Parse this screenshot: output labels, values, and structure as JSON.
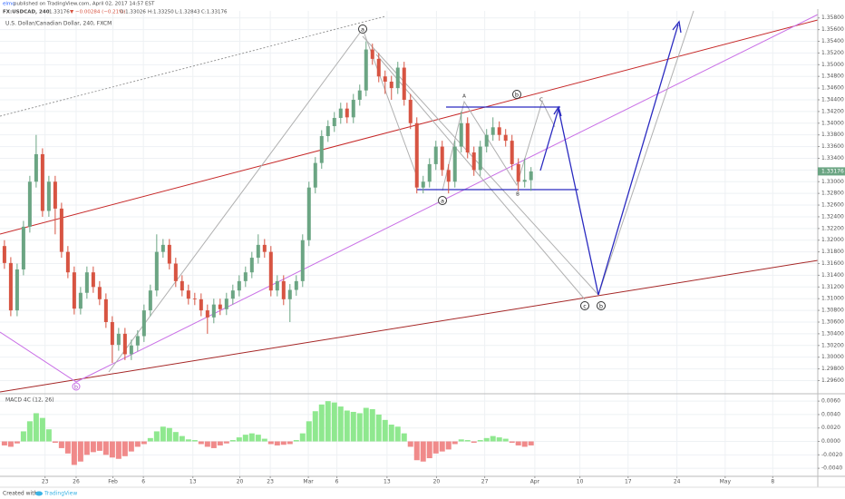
{
  "header": {
    "author": "elmo",
    "published": " published on TradingView.com, April 02, 2017 14:57 EST",
    "symbol": "FX:USDCAD, 240",
    "last": "1.33176",
    "change": "▼ −0.00284 (−0.21%)",
    "open": "O:1.33026",
    "high": "H:1.33250",
    "low": "L:1.32843",
    "close": "C:1.33176"
  },
  "chart_data": [
    {
      "type": "candlestick",
      "title": "U.S. Dollar/Canadian Dollar, 240, FXCM",
      "x": [
        0,
        1,
        2,
        3,
        4,
        5,
        6,
        7,
        8,
        9,
        10,
        11,
        12,
        13,
        14,
        15,
        16,
        17,
        18,
        19,
        20,
        21,
        22,
        23,
        24,
        25,
        26,
        27,
        28,
        29,
        30,
        31,
        32,
        33,
        34,
        35,
        36,
        37,
        38,
        39,
        40,
        41,
        42,
        43,
        44,
        45,
        46,
        47,
        48,
        49,
        50,
        51,
        52,
        53,
        54,
        55,
        56,
        57,
        58,
        59,
        60,
        61,
        62,
        63,
        64,
        65,
        66,
        67,
        68,
        69,
        70,
        71,
        72,
        73,
        74,
        75,
        76,
        77,
        78,
        79,
        80,
        81,
        82,
        83
      ],
      "open": [
        1.319,
        1.3161,
        1.308,
        1.315,
        1.3223,
        1.33,
        1.3347,
        1.325,
        1.33,
        1.3254,
        1.318,
        1.3145,
        1.3083,
        1.311,
        1.3145,
        1.312,
        1.3099,
        1.306,
        1.3021,
        1.304,
        1.3005,
        1.302,
        1.3036,
        1.308,
        1.3114,
        1.318,
        1.3192,
        1.316,
        1.313,
        1.3114,
        1.31,
        1.3099,
        1.308,
        1.3068,
        1.309,
        1.3082,
        1.31,
        1.3114,
        1.313,
        1.3145,
        1.317,
        1.3192,
        1.318,
        1.3114,
        1.313,
        1.3099,
        1.3115,
        1.313,
        1.32,
        1.329,
        1.3332,
        1.3378,
        1.3395,
        1.3409,
        1.3425,
        1.341,
        1.344,
        1.3456,
        1.3526,
        1.351,
        1.348,
        1.3471,
        1.346,
        1.3495,
        1.344,
        1.34,
        1.329,
        1.33,
        1.333,
        1.336,
        1.332,
        1.33,
        1.336,
        1.34,
        1.335,
        1.332,
        1.336,
        1.338,
        1.3393,
        1.338,
        1.337,
        1.333,
        1.33,
        1.33026
      ],
      "high": [
        1.32,
        1.3171,
        1.316,
        1.3233,
        1.331,
        1.338,
        1.3357,
        1.331,
        1.331,
        1.3264,
        1.319,
        1.3155,
        1.312,
        1.3155,
        1.3155,
        1.313,
        1.3109,
        1.307,
        1.305,
        1.305,
        1.303,
        1.3046,
        1.309,
        1.3124,
        1.321,
        1.3202,
        1.3202,
        1.317,
        1.314,
        1.3124,
        1.311,
        1.3109,
        1.309,
        1.31,
        1.31,
        1.311,
        1.3124,
        1.314,
        1.3155,
        1.318,
        1.321,
        1.3202,
        1.319,
        1.314,
        1.314,
        1.3125,
        1.314,
        1.321,
        1.33,
        1.3342,
        1.3388,
        1.3405,
        1.3419,
        1.3435,
        1.3435,
        1.345,
        1.3466,
        1.354,
        1.3536,
        1.352,
        1.349,
        1.3481,
        1.3505,
        1.3505,
        1.345,
        1.341,
        1.331,
        1.334,
        1.337,
        1.337,
        1.333,
        1.337,
        1.342,
        1.341,
        1.336,
        1.337,
        1.339,
        1.341,
        1.3403,
        1.339,
        1.338,
        1.334,
        1.334,
        1.3325
      ],
      "low": [
        1.3151,
        1.307,
        1.307,
        1.314,
        1.3213,
        1.329,
        1.324,
        1.324,
        1.321,
        1.317,
        1.3135,
        1.3073,
        1.3073,
        1.31,
        1.311,
        1.3089,
        1.305,
        1.299,
        1.3011,
        1.2995,
        1.2995,
        1.301,
        1.3026,
        1.307,
        1.3104,
        1.317,
        1.315,
        1.312,
        1.3104,
        1.309,
        1.3089,
        1.307,
        1.304,
        1.3058,
        1.3072,
        1.3072,
        1.309,
        1.3104,
        1.312,
        1.3135,
        1.316,
        1.317,
        1.3104,
        1.3104,
        1.3089,
        1.306,
        1.3105,
        1.312,
        1.319,
        1.328,
        1.3322,
        1.3368,
        1.3385,
        1.3399,
        1.34,
        1.34,
        1.343,
        1.3446,
        1.35,
        1.347,
        1.345,
        1.344,
        1.345,
        1.343,
        1.339,
        1.328,
        1.328,
        1.329,
        1.332,
        1.331,
        1.328,
        1.329,
        1.335,
        1.334,
        1.331,
        1.331,
        1.335,
        1.337,
        1.337,
        1.336,
        1.332,
        1.3284,
        1.329,
        1.32843
      ],
      "close": [
        1.3161,
        1.308,
        1.315,
        1.3223,
        1.33,
        1.3347,
        1.325,
        1.33,
        1.3254,
        1.318,
        1.3145,
        1.3083,
        1.311,
        1.3145,
        1.312,
        1.3099,
        1.306,
        1.3021,
        1.304,
        1.3005,
        1.302,
        1.3036,
        1.308,
        1.3114,
        1.318,
        1.3192,
        1.316,
        1.313,
        1.3114,
        1.31,
        1.3099,
        1.308,
        1.3068,
        1.309,
        1.3082,
        1.31,
        1.3114,
        1.313,
        1.3145,
        1.317,
        1.3192,
        1.318,
        1.3114,
        1.313,
        1.3099,
        1.3115,
        1.313,
        1.32,
        1.329,
        1.3332,
        1.3378,
        1.3395,
        1.3409,
        1.3425,
        1.341,
        1.344,
        1.3456,
        1.3526,
        1.351,
        1.348,
        1.3471,
        1.346,
        1.3495,
        1.344,
        1.34,
        1.329,
        1.33,
        1.333,
        1.336,
        1.332,
        1.33,
        1.336,
        1.34,
        1.335,
        1.332,
        1.336,
        1.338,
        1.3393,
        1.338,
        1.337,
        1.333,
        1.33,
        1.3303,
        1.33176
      ],
      "up_color": "#6ba583",
      "down_color": "#d75442",
      "last_label": "1.33176",
      "xlim": [
        -0.7,
        128.2
      ],
      "xticks": [
        {
          "value": 6.4,
          "label": "23"
        },
        {
          "value": 11.3,
          "label": "26"
        },
        {
          "value": 17.1,
          "label": "Feb"
        },
        {
          "value": 21.9,
          "label": "6"
        },
        {
          "value": 29.7,
          "label": "13"
        },
        {
          "value": 37.1,
          "label": "20"
        },
        {
          "value": 41.9,
          "label": "23"
        },
        {
          "value": 47.9,
          "label": "Mar"
        },
        {
          "value": 52.4,
          "label": "6"
        },
        {
          "value": 60.3,
          "label": "13"
        },
        {
          "value": 68.1,
          "label": "20"
        },
        {
          "value": 75.7,
          "label": "27"
        },
        {
          "value": 83.6,
          "label": "Apr"
        },
        {
          "value": 90.7,
          "label": "10"
        },
        {
          "value": 98.3,
          "label": "17"
        },
        {
          "value": 106,
          "label": "24"
        },
        {
          "value": 113.6,
          "label": "May"
        },
        {
          "value": 121.1,
          "label": "8"
        }
      ],
      "ylim": [
        1.2939,
        1.3592
      ],
      "yticks": [
        {
          "value": 1.296,
          "label": "1.29600"
        },
        {
          "value": 1.298,
          "label": "1.29800"
        },
        {
          "value": 1.3,
          "label": "1.30000"
        },
        {
          "value": 1.302,
          "label": "1.30200"
        },
        {
          "value": 1.304,
          "label": "1.30400"
        },
        {
          "value": 1.306,
          "label": "1.30600"
        },
        {
          "value": 1.308,
          "label": "1.30800"
        },
        {
          "value": 1.31,
          "label": "1.31000"
        },
        {
          "value": 1.312,
          "label": "1.31200"
        },
        {
          "value": 1.314,
          "label": "1.31400"
        },
        {
          "value": 1.316,
          "label": "1.31600"
        },
        {
          "value": 1.318,
          "label": "1.31800"
        },
        {
          "value": 1.32,
          "label": "1.32000"
        },
        {
          "value": 1.322,
          "label": "1.32200"
        },
        {
          "value": 1.324,
          "label": "1.32400"
        },
        {
          "value": 1.326,
          "label": "1.32600"
        },
        {
          "value": 1.328,
          "label": "1.32800"
        },
        {
          "value": 1.33,
          "label": "1.33000"
        },
        {
          "value": 1.332,
          "label": "1.33200"
        },
        {
          "value": 1.334,
          "label": "1.33400"
        },
        {
          "value": 1.336,
          "label": "1.33600"
        },
        {
          "value": 1.338,
          "label": "1.33800"
        },
        {
          "value": 1.34,
          "label": "1.34000"
        },
        {
          "value": 1.342,
          "label": "1.34200"
        },
        {
          "value": 1.344,
          "label": "1.34400"
        },
        {
          "value": 1.346,
          "label": "1.34600"
        },
        {
          "value": 1.348,
          "label": "1.34800"
        },
        {
          "value": 1.35,
          "label": "1.35000"
        },
        {
          "value": 1.352,
          "label": "1.35200"
        },
        {
          "value": 1.354,
          "label": "1.35400"
        },
        {
          "value": 1.356,
          "label": "1.35600"
        },
        {
          "value": 1.358,
          "label": "1.35800"
        }
      ],
      "grid": true
    },
    {
      "type": "histogram",
      "title": "MACD 4C (12, 26)",
      "x": [
        0,
        1,
        2,
        3,
        4,
        5,
        6,
        7,
        8,
        9,
        10,
        11,
        12,
        13,
        14,
        15,
        16,
        17,
        18,
        19,
        20,
        21,
        22,
        23,
        24,
        25,
        26,
        27,
        28,
        29,
        30,
        31,
        32,
        33,
        34,
        35,
        36,
        37,
        38,
        39,
        40,
        41,
        42,
        43,
        44,
        45,
        46,
        47,
        48,
        49,
        50,
        51,
        52,
        53,
        54,
        55,
        56,
        57,
        58,
        59,
        60,
        61,
        62,
        63,
        64,
        65,
        66,
        67,
        68,
        69,
        70,
        71,
        72,
        73,
        74,
        75,
        76,
        77,
        78,
        79,
        80,
        81,
        82,
        83
      ],
      "values": [
        -0.0006,
        -0.0008,
        -0.0003,
        0.0015,
        0.003,
        0.0042,
        0.0035,
        0.0018,
        -0.0002,
        -0.001,
        -0.0018,
        -0.0035,
        -0.003,
        -0.002,
        -0.0016,
        -0.0014,
        -0.002,
        -0.0024,
        -0.0026,
        -0.0022,
        -0.0015,
        -0.0008,
        -0.0004,
        0.0005,
        0.0015,
        0.0022,
        0.002,
        0.0014,
        0.0008,
        0.0003,
        0.0002,
        -0.0004,
        -0.0008,
        -0.001,
        -0.0006,
        -0.0003,
        0.0002,
        0.0006,
        0.001,
        0.0012,
        0.001,
        0.0004,
        -0.0004,
        -0.0006,
        -0.0005,
        -0.0004,
        0.0002,
        0.0012,
        0.003,
        0.0045,
        0.0055,
        0.006,
        0.0058,
        0.0052,
        0.0046,
        0.0044,
        0.0042,
        0.005,
        0.0048,
        0.004,
        0.0032,
        0.0025,
        0.0022,
        0.0012,
        -0.0008,
        -0.0028,
        -0.003,
        -0.0025,
        -0.0018,
        -0.0015,
        -0.0012,
        -0.0004,
        0.0003,
        0.0002,
        -0.0002,
        0.0002,
        0.0005,
        0.0008,
        0.0006,
        0.0004,
        -0.0002,
        -0.0006,
        -0.0008,
        -0.0006
      ],
      "up_color": "#8fe88f",
      "down_color": "#f08a8a",
      "xlim": [
        -0.7,
        128.2
      ],
      "ylim": [
        -0.0052,
        0.0071
      ],
      "yticks": [
        {
          "value": -0.004,
          "label": "-0.0040"
        },
        {
          "value": -0.002,
          "label": "-0.0020"
        },
        {
          "value": 0,
          "label": "0.0000"
        },
        {
          "value": 0.002,
          "label": "0.0020"
        },
        {
          "value": 0.004,
          "label": "0.0040"
        },
        {
          "value": 0.006,
          "label": "0.0060"
        }
      ],
      "grid": true
    }
  ],
  "annotations": {
    "wave_labels": [
      "a",
      "b",
      "a",
      "c",
      "b",
      "b"
    ],
    "letters": [
      "A",
      "B",
      "C"
    ]
  },
  "footer": {
    "text": "Created with",
    "brand": "TradingView"
  }
}
